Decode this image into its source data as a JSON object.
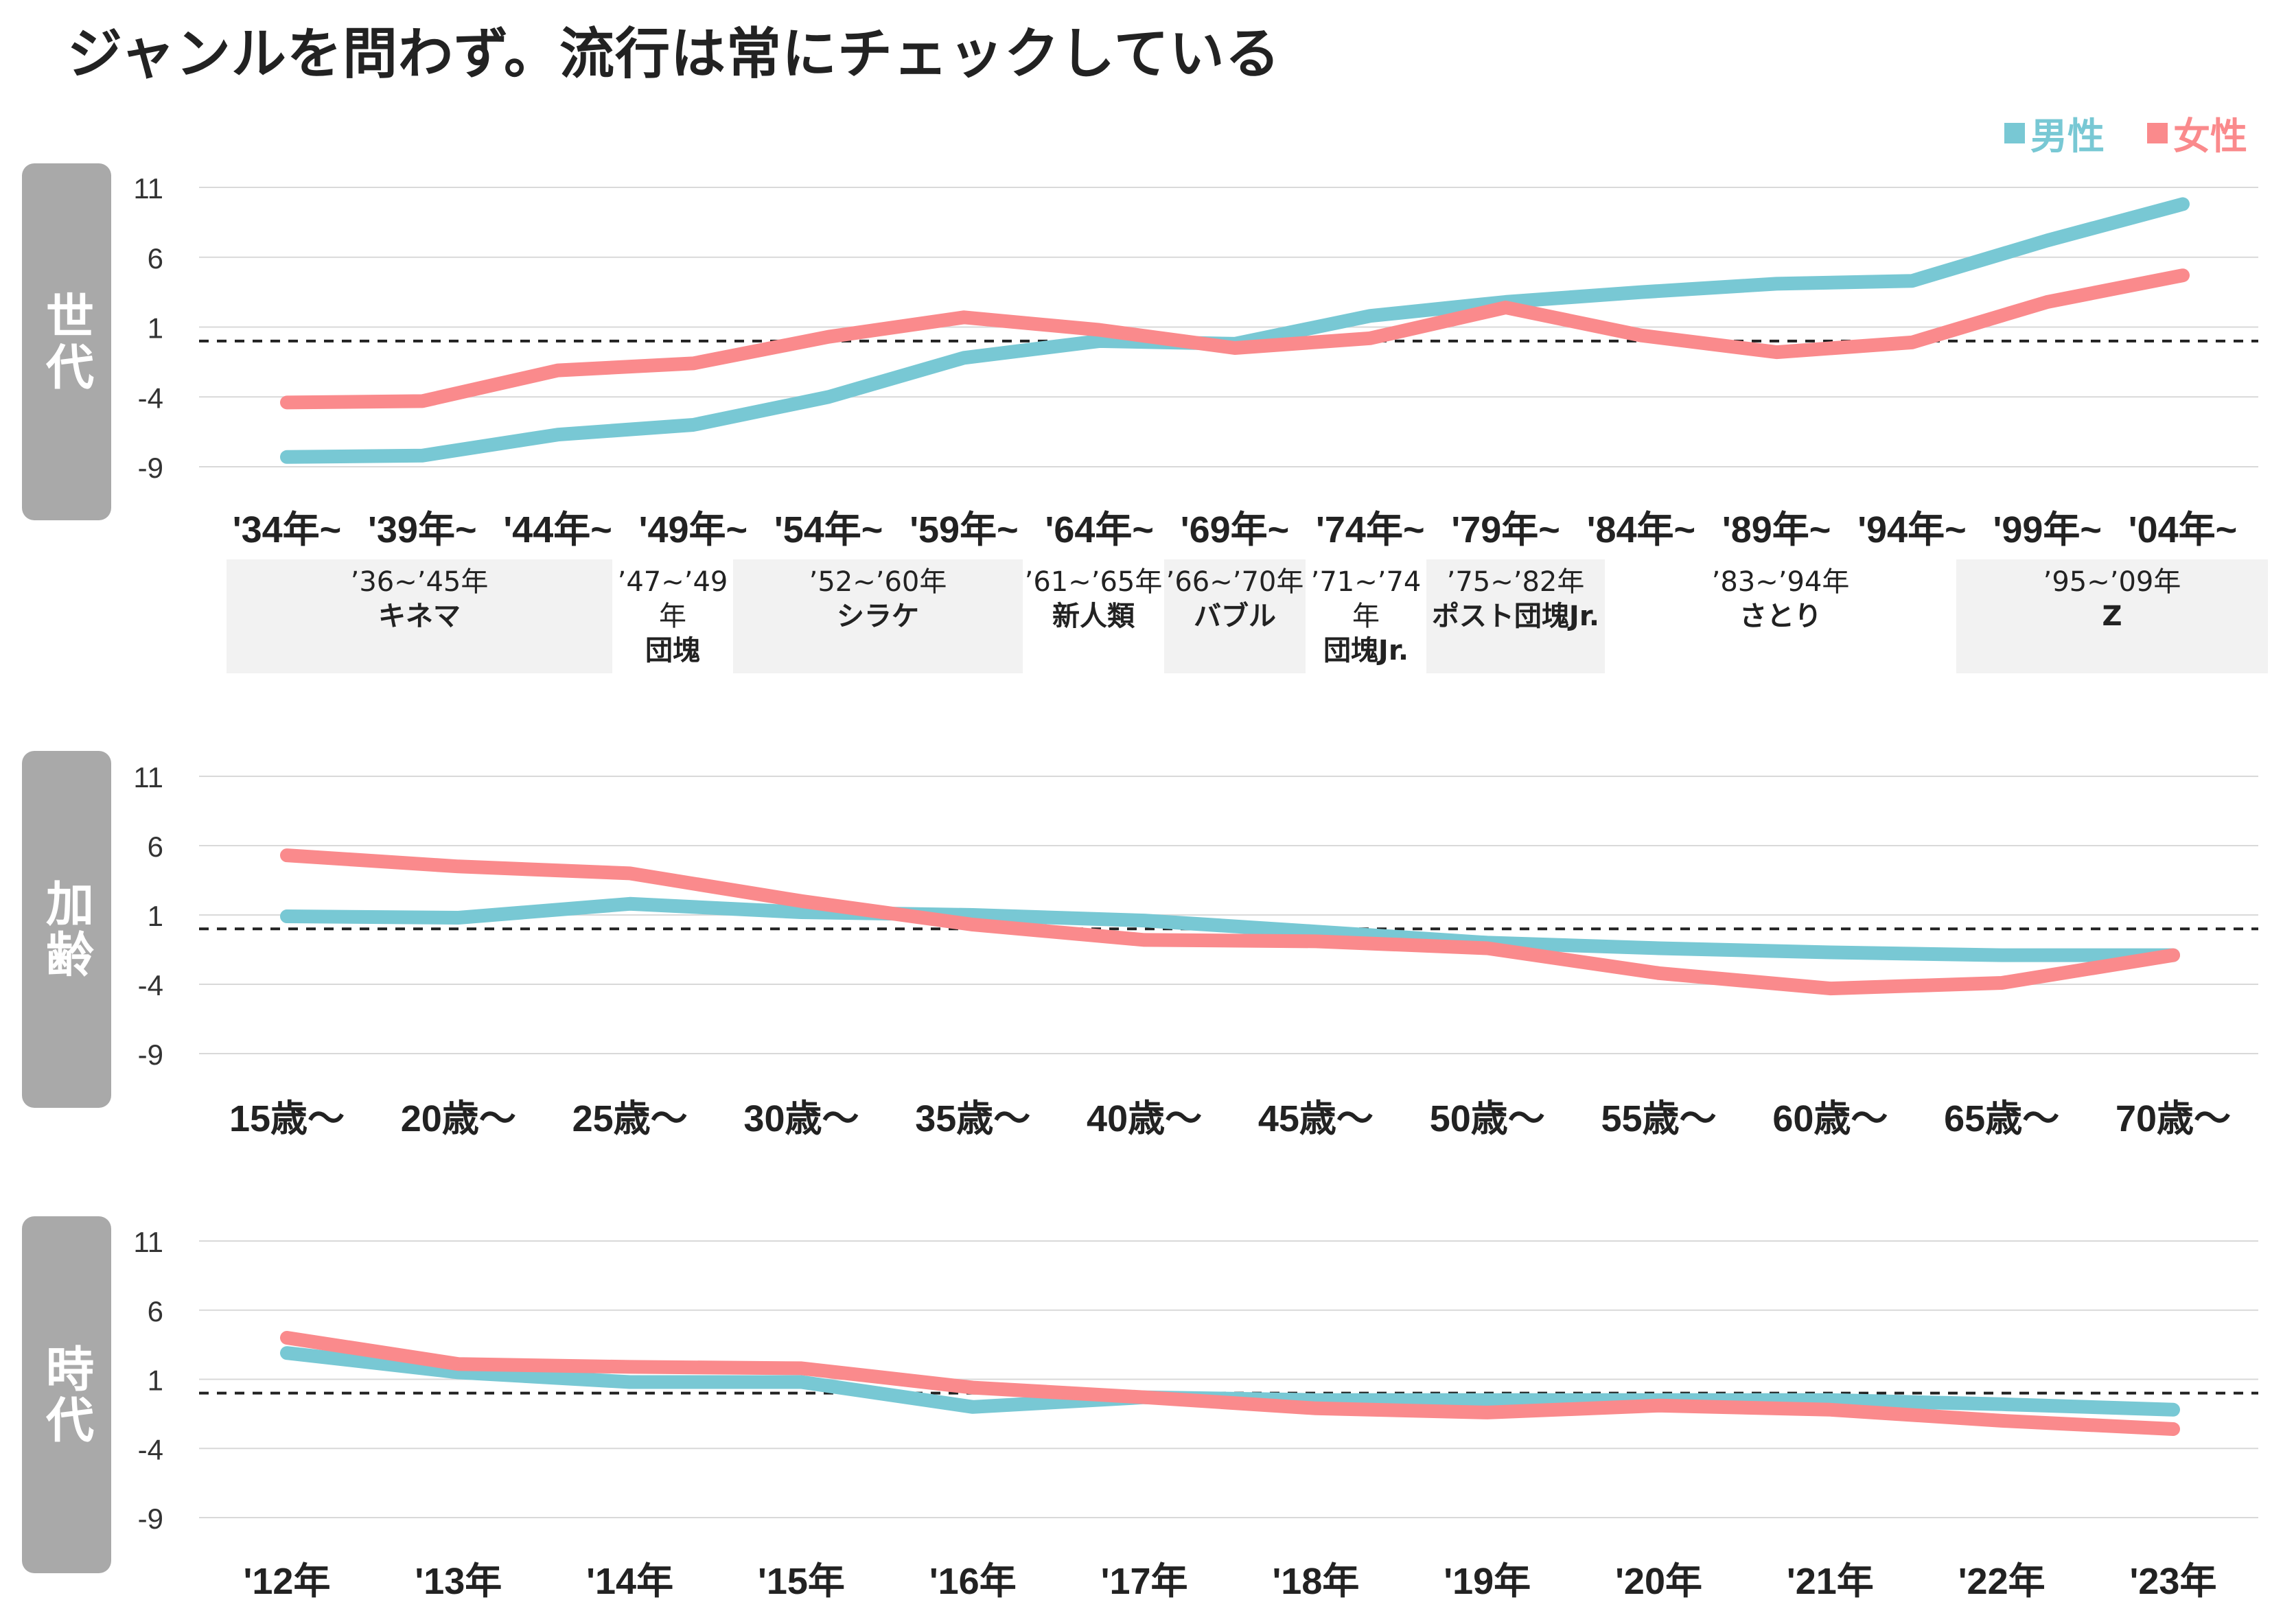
{
  "title": "ジャンルを問わず。流行は常にチェックしている",
  "legend": {
    "male": "男性",
    "female": "女性"
  },
  "colors": {
    "male": "#78c8d4",
    "female": "#fa8a8c",
    "label_bg": "#a9a9a9",
    "grid": "#d9d9d9",
    "gen_bg": "#f2f2f2"
  },
  "panels": [
    {
      "label": "世代"
    },
    {
      "label": "加齢"
    },
    {
      "label": "時代"
    }
  ],
  "generations": [
    {
      "range": "’36~’45年",
      "name": "キネマ"
    },
    {
      "range": "’47~’49年",
      "name": "団塊"
    },
    {
      "range": "’52~’60年",
      "name": "シラケ"
    },
    {
      "range": "’61~’65年",
      "name": "新人類"
    },
    {
      "range": "’66~’70年",
      "name": "バブル"
    },
    {
      "range": "’71~’74年",
      "name": "団塊Jr."
    },
    {
      "range": "’75~’82年",
      "name": "ポスト団塊Jr."
    },
    {
      "range": "’83~’94年",
      "name": "さとり"
    },
    {
      "range": "’95~’09年",
      "name": "Z"
    }
  ],
  "chart_data": [
    {
      "type": "line",
      "title": "世代",
      "categories": [
        "'34年~",
        "'39年~",
        "'44年~",
        "'49年~",
        "'54年~",
        "'59年~",
        "'64年~",
        "'69年~",
        "'74年~",
        "'79年~",
        "'84年~",
        "'89年~",
        "'94年~",
        "'99年~",
        "'04年~"
      ],
      "yticks": [
        "11",
        "6",
        "1",
        "-4",
        "-9"
      ],
      "ylim": [
        -11,
        12
      ],
      "reference_line": 0,
      "series": [
        {
          "name": "男性",
          "values": [
            -8.3,
            -8.2,
            -6.7,
            -6.0,
            -4.0,
            -1.2,
            0.0,
            -0.2,
            1.8,
            2.8,
            3.5,
            4.1,
            4.3,
            7.2,
            9.8
          ]
        },
        {
          "name": "女性",
          "values": [
            -4.4,
            -4.3,
            -2.1,
            -1.6,
            0.3,
            1.7,
            0.8,
            -0.5,
            0.2,
            2.4,
            0.4,
            -0.8,
            -0.1,
            2.8,
            4.7
          ]
        }
      ]
    },
    {
      "type": "line",
      "title": "加齢",
      "categories": [
        "15歳～",
        "20歳～",
        "25歳～",
        "30歳～",
        "35歳～",
        "40歳～",
        "45歳～",
        "50歳～",
        "55歳～",
        "60歳～",
        "65歳～",
        "70歳～"
      ],
      "yticks": [
        "11",
        "6",
        "1",
        "-4",
        "-9"
      ],
      "ylim": [
        -11,
        12
      ],
      "reference_line": 0,
      "series": [
        {
          "name": "男性",
          "values": [
            0.9,
            0.8,
            1.8,
            1.2,
            1.0,
            0.6,
            -0.2,
            -1.0,
            -1.4,
            -1.7,
            -1.9,
            -1.9
          ]
        },
        {
          "name": "女性",
          "values": [
            5.3,
            4.5,
            4.0,
            2.0,
            0.3,
            -0.8,
            -0.9,
            -1.4,
            -3.2,
            -4.3,
            -3.9,
            -1.9
          ]
        }
      ]
    },
    {
      "type": "line",
      "title": "時代",
      "categories": [
        "'12年",
        "'13年",
        "'14年",
        "'15年",
        "'16年",
        "'17年",
        "'18年",
        "'19年",
        "'20年",
        "'21年",
        "'22年",
        "'23年"
      ],
      "yticks": [
        "11",
        "6",
        "1",
        "-4",
        "-9"
      ],
      "ylim": [
        -11,
        12
      ],
      "reference_line": 0,
      "series": [
        {
          "name": "男性",
          "values": [
            2.9,
            1.5,
            0.8,
            0.8,
            -1.0,
            -0.3,
            -0.5,
            -0.5,
            -0.5,
            -0.5,
            -0.8,
            -1.2
          ]
        },
        {
          "name": "女性",
          "values": [
            4.0,
            2.1,
            1.9,
            1.8,
            0.4,
            -0.3,
            -1.1,
            -1.4,
            -0.9,
            -1.2,
            -2.0,
            -2.6
          ]
        }
      ]
    }
  ]
}
